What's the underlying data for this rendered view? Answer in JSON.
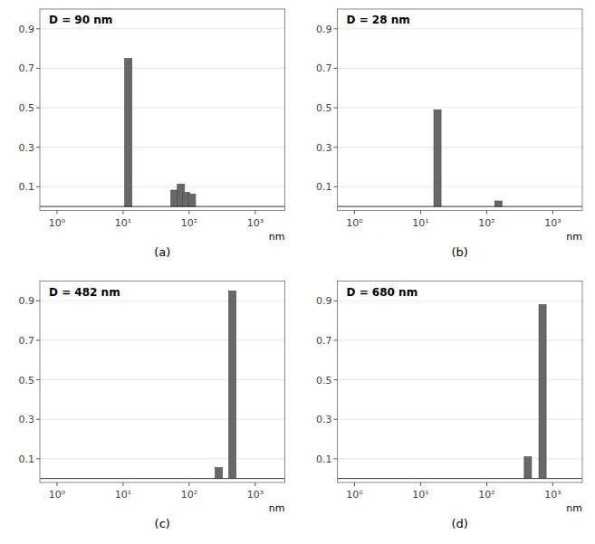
{
  "chart_data": [
    {
      "type": "bar",
      "title": "D = 90 nm",
      "subtitle": "(a)",
      "x_label": "nm",
      "log": "x",
      "color": "#686868",
      "x": [
        12,
        60,
        75,
        90,
        110
      ],
      "values": [
        0.75,
        0.083,
        0.113,
        0.072,
        0.063
      ],
      "xlim": [
        0.55,
        2800
      ],
      "ylim": [
        -0.02,
        1.0
      ],
      "xticks": [
        {
          "value": 1,
          "label": "10⁰"
        },
        {
          "value": 10,
          "label": "10¹"
        },
        {
          "value": 100,
          "label": "10²"
        },
        {
          "value": 1000,
          "label": "10³"
        }
      ],
      "yticks": [
        0.1,
        0.3,
        0.5,
        0.7,
        0.9
      ]
    },
    {
      "type": "bar",
      "title": "D = 28 nm",
      "subtitle": "(b)",
      "x_label": "nm",
      "log": "x",
      "color": "#686868",
      "x": [
        18,
        150
      ],
      "values": [
        0.49,
        0.028
      ],
      "xlim": [
        0.55,
        2800
      ],
      "ylim": [
        -0.02,
        1.0
      ],
      "xticks": [
        {
          "value": 1,
          "label": "10⁰"
        },
        {
          "value": 10,
          "label": "10¹"
        },
        {
          "value": 100,
          "label": "10²"
        },
        {
          "value": 1000,
          "label": "10³"
        }
      ],
      "yticks": [
        0.1,
        0.3,
        0.5,
        0.7,
        0.9
      ]
    },
    {
      "type": "bar",
      "title": "D = 482 nm",
      "subtitle": "(c)",
      "x_label": "nm",
      "log": "x",
      "color": "#686868",
      "x": [
        280,
        450
      ],
      "values": [
        0.055,
        0.95
      ],
      "xlim": [
        0.55,
        2800
      ],
      "ylim": [
        -0.02,
        1.0
      ],
      "xticks": [
        {
          "value": 1,
          "label": "10⁰"
        },
        {
          "value": 10,
          "label": "10¹"
        },
        {
          "value": 100,
          "label": "10²"
        },
        {
          "value": 1000,
          "label": "10³"
        }
      ],
      "yticks": [
        0.1,
        0.3,
        0.5,
        0.7,
        0.9
      ]
    },
    {
      "type": "bar",
      "title": "D = 680 nm",
      "subtitle": "(d)",
      "x_label": "nm",
      "log": "x",
      "color": "#686868",
      "x": [
        420,
        700
      ],
      "values": [
        0.11,
        0.88
      ],
      "xlim": [
        0.55,
        2800
      ],
      "ylim": [
        -0.02,
        1.0
      ],
      "xticks": [
        {
          "value": 1,
          "label": "10⁰"
        },
        {
          "value": 10,
          "label": "10¹"
        },
        {
          "value": 100,
          "label": "10²"
        },
        {
          "value": 1000,
          "label": "10³"
        }
      ],
      "yticks": [
        0.1,
        0.3,
        0.5,
        0.7,
        0.9
      ]
    }
  ]
}
